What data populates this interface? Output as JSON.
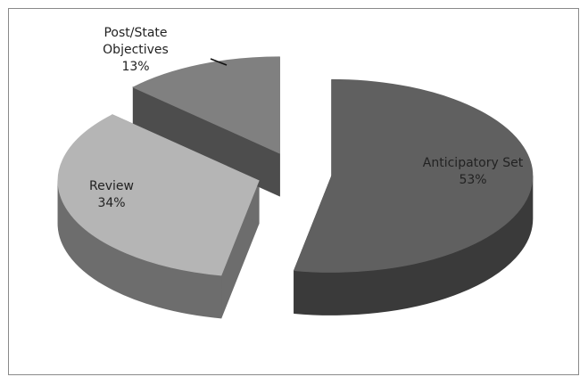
{
  "chart_data": {
    "type": "pie",
    "categories": [
      "Anticipatory Set",
      "Review",
      "Post/State Objectives"
    ],
    "values": [
      53,
      34,
      13
    ],
    "value_labels": [
      "53%",
      "34%",
      "13%"
    ],
    "colors": [
      "#606060",
      "#b5b5b5",
      "#808080"
    ]
  }
}
